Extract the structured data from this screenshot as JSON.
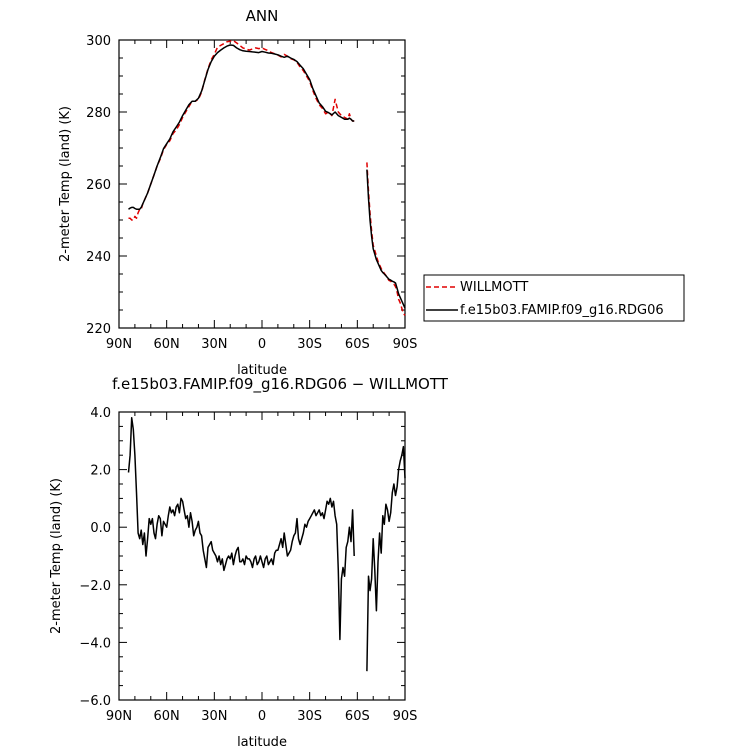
{
  "chart_data": [
    {
      "type": "line",
      "title": "ANN",
      "xlabel": "latitude",
      "ylabel": "2-meter Temp (land) (K)",
      "xlim": [
        90,
        -90
      ],
      "ylim": [
        220,
        300
      ],
      "x_ticks": [
        90,
        60,
        30,
        0,
        -30,
        -60,
        -90
      ],
      "x_tick_labels": [
        "90N",
        "60N",
        "30N",
        "0",
        "30S",
        "60S",
        "90S"
      ],
      "y_ticks": [
        220,
        240,
        260,
        280,
        300
      ],
      "y_tick_labels": [
        "220",
        "240",
        "260",
        "280",
        "300"
      ],
      "grid": false,
      "legend_position": "right",
      "series": [
        {
          "name": "WILLMOTT",
          "color": "#e00000",
          "dash": "dashed",
          "segments": [
            {
              "x": [
                84,
                83,
                82,
                81,
                80,
                79,
                78,
                77,
                76,
                75,
                72,
                70,
                68,
                66,
                64,
                62,
                60,
                58,
                56,
                54,
                52,
                50,
                48,
                46,
                44,
                42,
                40,
                38,
                36,
                34,
                32,
                30,
                28,
                26,
                24,
                22,
                20,
                18,
                16,
                14,
                12,
                10,
                8,
                6,
                4,
                2,
                0,
                -2,
                -4,
                -6,
                -8,
                -10,
                -12,
                -14,
                -16,
                -18,
                -20,
                -22,
                -24,
                -26,
                -28,
                -30,
                -32,
                -34,
                -36,
                -38,
                -40,
                -42,
                -44,
                -46,
                -48,
                -50,
                -52,
                -54,
                -55,
                -56,
                -57,
                -58
              ],
              "y": [
                250.5,
                250.5,
                250,
                250,
                251,
                250.5,
                252,
                253,
                253,
                254.5,
                257.5,
                260,
                262.5,
                265,
                267,
                269.5,
                271,
                272,
                274,
                275,
                276.5,
                278.5,
                280,
                281.5,
                283,
                283,
                283.5,
                285.5,
                289,
                292,
                294.5,
                296,
                298,
                298.5,
                299,
                299.5,
                299.7,
                299.8,
                299.2,
                298.5,
                297.8,
                297.5,
                297.2,
                297.5,
                297.8,
                297.6,
                297.8,
                297.4,
                297,
                296.5,
                296.2,
                295.8,
                295.3,
                296,
                295.5,
                294.8,
                294.5,
                293.8,
                292.5,
                291.5,
                290,
                288.5,
                286,
                283.8,
                282,
                281,
                279.5,
                280,
                279,
                283.5,
                280,
                279,
                278.5,
                278,
                279.5,
                278,
                277.5,
                277.5
              ]
            },
            {
              "x": [
                -66,
                -66.5,
                -67,
                -68,
                -69,
                -70,
                -71,
                -72,
                -73,
                -74,
                -75,
                -76,
                -77,
                -78,
                -79,
                -80,
                -81,
                -82,
                -83,
                -84,
                -85,
                -86,
                -87,
                -88,
                -89,
                -90
              ],
              "y": [
                266,
                262,
                258,
                252,
                247,
                243,
                241.5,
                240,
                238.5,
                237.5,
                236.5,
                235.8,
                235.2,
                234.6,
                233.8,
                233.2,
                233,
                232.5,
                232.2,
                231.5,
                230,
                228,
                227,
                225.5,
                224,
                223.5
              ]
            }
          ]
        },
        {
          "name": "f.e15b03.FAMIP.f09_g16.RDG06",
          "color": "#000000",
          "dash": "solid",
          "segments": [
            {
              "x": [
                84,
                83,
                82,
                81,
                80,
                79,
                78,
                77,
                76,
                75,
                72,
                70,
                68,
                66,
                64,
                62,
                60,
                58,
                56,
                54,
                52,
                50,
                48,
                46,
                44,
                42,
                40,
                38,
                36,
                34,
                32,
                30,
                28,
                26,
                24,
                22,
                20,
                18,
                16,
                14,
                12,
                10,
                8,
                6,
                4,
                2,
                0,
                -2,
                -4,
                -6,
                -8,
                -10,
                -12,
                -14,
                -16,
                -18,
                -20,
                -22,
                -24,
                -26,
                -28,
                -30,
                -32,
                -34,
                -36,
                -38,
                -40,
                -42,
                -44,
                -46,
                -48,
                -50,
                -52,
                -54,
                -55,
                -56,
                -57,
                -58
              ],
              "y": [
                253,
                253.3,
                253.5,
                253.5,
                253.2,
                253,
                253,
                253,
                253.5,
                254.5,
                257.5,
                260,
                262.5,
                265,
                267.3,
                269.8,
                271.2,
                272.5,
                274.5,
                275.8,
                277.2,
                279,
                280.5,
                282,
                283,
                283,
                283.8,
                285.8,
                288.8,
                291.8,
                294,
                295.5,
                296.5,
                297.2,
                297.8,
                298.3,
                298.6,
                298.5,
                297.8,
                297.3,
                297,
                296.9,
                296.8,
                296.7,
                296.6,
                296.5,
                296.8,
                296.6,
                296.4,
                296.3,
                296.1,
                295.9,
                295.5,
                295.2,
                295.5,
                295,
                294.6,
                294,
                293,
                292,
                290.5,
                289,
                286.5,
                284.5,
                282.5,
                281.5,
                280.2,
                279.8,
                279.2,
                280,
                279,
                278.5,
                278,
                278,
                278.3,
                278,
                277.5,
                277.5
              ]
            },
            {
              "x": [
                -66,
                -66.5,
                -67,
                -68,
                -69,
                -70,
                -71,
                -72,
                -73,
                -74,
                -75,
                -76,
                -77,
                -78,
                -79,
                -80,
                -81,
                -82,
                -83,
                -84,
                -85,
                -86,
                -87,
                -88,
                -89,
                -90
              ],
              "y": [
                264,
                260,
                256,
                250,
                245.5,
                242,
                240.5,
                239,
                238,
                237,
                236,
                235.4,
                235,
                234.5,
                234,
                233.5,
                233.3,
                233,
                232.8,
                232.5,
                231,
                229.5,
                228.5,
                227.5,
                226.5,
                225.5
              ]
            }
          ]
        }
      ]
    },
    {
      "type": "line",
      "title": "f.e15b03.FAMIP.f09_g16.RDG06 − WILLMOTT",
      "xlabel": "latitude",
      "ylabel": "2-meter Temp (land) (K)",
      "xlim": [
        90,
        -90
      ],
      "ylim": [
        -6,
        4
      ],
      "x_ticks": [
        90,
        60,
        30,
        0,
        -30,
        -60,
        -90
      ],
      "x_tick_labels": [
        "90N",
        "60N",
        "30N",
        "0",
        "30S",
        "60S",
        "90S"
      ],
      "y_ticks": [
        4,
        2,
        0,
        -2,
        -4,
        -6
      ],
      "y_tick_labels": [
        "4.0",
        "2.0",
        "0.0",
        "−2.0",
        "−4.0",
        "−6.0"
      ],
      "grid": false,
      "series": [
        {
          "color": "#000000",
          "dash": "solid",
          "segments": [
            {
              "x": [
                84,
                83,
                82,
                81,
                80,
                79,
                78,
                77,
                76,
                75,
                74,
                73,
                72,
                71,
                70,
                69,
                68,
                67,
                66,
                65,
                64,
                63,
                62,
                61,
                60,
                59,
                58,
                57,
                56,
                55,
                54,
                53,
                52,
                51,
                50,
                49,
                48,
                47,
                46,
                45,
                44,
                43,
                42,
                41,
                40,
                39,
                38,
                37,
                36,
                35,
                34,
                33,
                32,
                31,
                30,
                29,
                28,
                27,
                26,
                25,
                24,
                23,
                22,
                21,
                20,
                19,
                18,
                17,
                16,
                15,
                14,
                13,
                12,
                11,
                10,
                9,
                8,
                7,
                6,
                5,
                4,
                3,
                2,
                1,
                0,
                -1,
                -2,
                -3,
                -4,
                -5,
                -6,
                -7,
                -8,
                -9,
                -10,
                -11,
                -12,
                -13,
                -14,
                -15,
                -16,
                -17,
                -18,
                -19,
                -20,
                -21,
                -22,
                -23,
                -24,
                -25,
                -26,
                -27,
                -28,
                -29,
                -30,
                -31,
                -32,
                -33,
                -34,
                -35,
                -36,
                -37,
                -38,
                -39,
                -40,
                -41,
                -42,
                -43,
                -44,
                -45,
                -46,
                -47,
                -48,
                -49,
                -50,
                -51,
                -52,
                -53,
                -54,
                -55,
                -56,
                -57,
                -58
              ],
              "y": [
                1.9,
                2.5,
                3.8,
                3.4,
                2.5,
                1.2,
                -0.2,
                -0.4,
                -0.1,
                -0.6,
                -0.2,
                -1.0,
                -0.4,
                0.3,
                0.1,
                0.3,
                -0.2,
                -0.4,
                0.1,
                0.4,
                0.3,
                -0.3,
                0.2,
                0.1,
                0.0,
                0.4,
                0.7,
                0.5,
                0.6,
                0.4,
                0.7,
                0.8,
                0.5,
                1.0,
                0.9,
                0.6,
                0.3,
                0.4,
                0.0,
                0.5,
                0.2,
                -0.3,
                -0.1,
                0.0,
                0.2,
                -0.2,
                -0.3,
                -0.8,
                -1.1,
                -1.4,
                -0.7,
                -0.6,
                -0.5,
                -0.8,
                -0.9,
                -1.0,
                -1.2,
                -1.0,
                -1.3,
                -1.1,
                -1.5,
                -1.3,
                -1.1,
                -1.0,
                -1.1,
                -0.9,
                -1.3,
                -1.0,
                -0.8,
                -0.7,
                -1.2,
                -1.2,
                -1.1,
                -1.3,
                -1.0,
                -1.1,
                -1.1,
                -1.2,
                -1.4,
                -1.1,
                -1.0,
                -1.3,
                -1.2,
                -1.0,
                -1.2,
                -1.4,
                -1.1,
                -1.0,
                -1.3,
                -1.2,
                -1.1,
                -1.3,
                -0.9,
                -0.8,
                -0.8,
                -0.6,
                -0.4,
                -0.7,
                -0.2,
                -0.6,
                -1.0,
                -0.9,
                -0.8,
                -0.5,
                -0.3,
                -0.2,
                0.3,
                -0.4,
                -0.6,
                -0.4,
                -0.2,
                0.1,
                0.0,
                0.2,
                0.3,
                0.4,
                0.5,
                0.6,
                0.4,
                0.5,
                0.6,
                0.4,
                0.5,
                0.3,
                0.6,
                0.9,
                0.8,
                1.0,
                0.7,
                0.9,
                0.4,
                0.1,
                -1.5,
                -3.9,
                -1.8,
                -1.4,
                -1.7,
                -0.7,
                -0.5,
                0.0,
                -0.5,
                0.6,
                -1.0
              ]
            },
            {
              "x": [
                -66,
                -67,
                -68,
                -69,
                -70,
                -71,
                -72,
                -73,
                -74,
                -75,
                -76,
                -77,
                -78,
                -79,
                -80,
                -81,
                -82,
                -83,
                -84,
                -85,
                -86,
                -87,
                -88,
                -89,
                -90
              ],
              "y": [
                -5.0,
                -1.7,
                -2.2,
                -1.8,
                -0.4,
                -1.5,
                -2.9,
                -1.2,
                -0.2,
                -0.9,
                0.4,
                0.1,
                0.8,
                0.6,
                0.2,
                0.5,
                1.2,
                1.5,
                1.1,
                1.4,
                2.0,
                2.3,
                2.5,
                2.8,
                1.7
              ]
            }
          ]
        }
      ]
    }
  ]
}
